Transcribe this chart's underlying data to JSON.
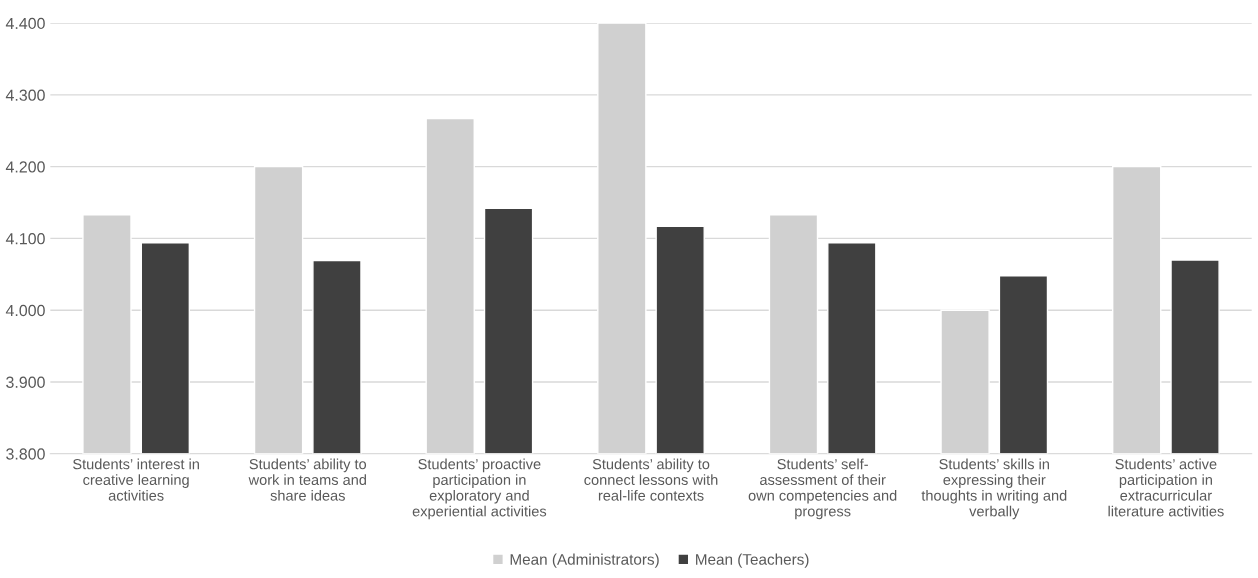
{
  "chart_data": {
    "type": "bar",
    "categories": [
      "Students’ interest in\ncreative learning\nactivities",
      "Students’ ability to\nwork in teams and\nshare ideas",
      "Students’ proactive\nparticipation in\nexploratory and\nexperiential activities",
      "Students’ ability to\nconnect lessons with\nreal-life contexts",
      "Students’ self-\nassessment of their\nown competencies and\nprogress",
      "Students’ skills in\nexpressing their\nthoughts in writing and\nverbally",
      "Students’ active\nparticipation in\nextracurricular\nliterature activities"
    ],
    "series": [
      {
        "name": "Mean (Administrators)",
        "color": "#d0d0d0",
        "values": [
          4.133,
          4.2,
          4.267,
          4.4,
          4.133,
          4.0,
          4.2
        ]
      },
      {
        "name": "Mean (Teachers)",
        "color": "#404040",
        "values": [
          4.094,
          4.069,
          4.142,
          4.117,
          4.094,
          4.048,
          4.07
        ]
      }
    ],
    "ylim": [
      3.8,
      4.4
    ],
    "yticks": [
      {
        "value": 3.8,
        "label": "3.800"
      },
      {
        "value": 3.9,
        "label": "3.900"
      },
      {
        "value": 4.0,
        "label": "4.000"
      },
      {
        "value": 4.1,
        "label": "4.100"
      },
      {
        "value": 4.2,
        "label": "4.200"
      },
      {
        "value": 4.3,
        "label": "4.300"
      },
      {
        "value": 4.4,
        "label": "4.400"
      }
    ],
    "grid": "y",
    "legend": "bottom"
  }
}
